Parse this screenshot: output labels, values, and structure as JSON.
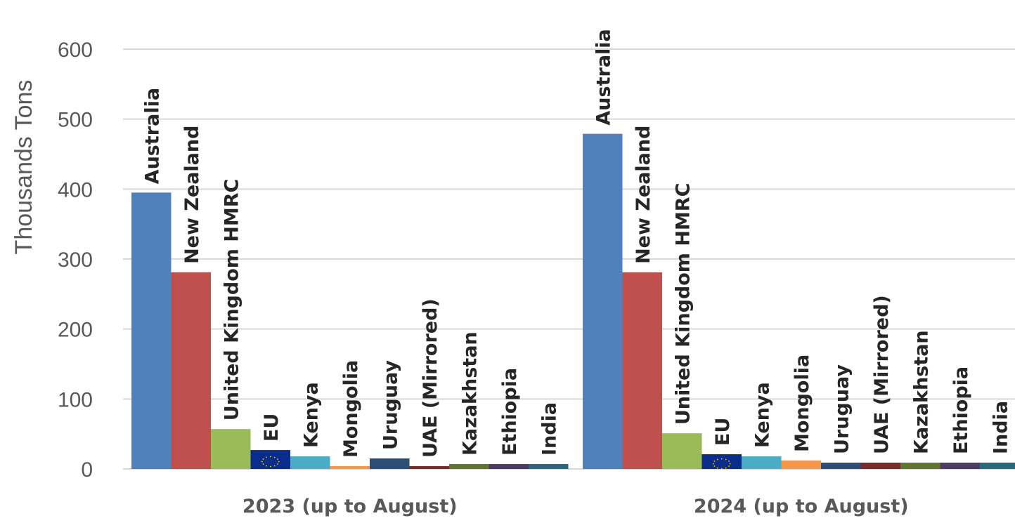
{
  "chart_data": {
    "type": "bar",
    "ylabel": "Thousands Tons",
    "ylim": [
      0,
      600
    ],
    "yticks": [
      "0",
      "100",
      "200",
      "300",
      "400",
      "500",
      "600"
    ],
    "grid": true,
    "categories": [
      "2023 (up to August)",
      "2024 (up to August)"
    ],
    "series": [
      {
        "name": "Australia",
        "color": "#4f81bd",
        "values": [
          395,
          479
        ]
      },
      {
        "name": "New Zealand",
        "color": "#c0504d",
        "values": [
          281,
          281
        ]
      },
      {
        "name": "United Kingdom HMRC",
        "color": "#9bbb59",
        "values": [
          57,
          51
        ]
      },
      {
        "name": "EU",
        "color": "#0a2d8c",
        "icon": "eu-flag-icon",
        "values": [
          27,
          21
        ]
      },
      {
        "name": "Kenya",
        "color": "#4bacc6",
        "values": [
          18,
          18
        ]
      },
      {
        "name": "Mongolia",
        "color": "#f79646",
        "values": [
          4,
          12
        ]
      },
      {
        "name": "Uruguay",
        "color": "#2c4d75",
        "values": [
          15,
          9
        ]
      },
      {
        "name": "UAE (Mirrored)",
        "color": "#772c2a",
        "values": [
          4,
          9
        ]
      },
      {
        "name": "Kazakhstan",
        "color": "#5f7530",
        "values": [
          7,
          9
        ]
      },
      {
        "name": "Ethiopia",
        "color": "#4d3b62",
        "values": [
          7,
          9
        ]
      },
      {
        "name": "India",
        "color": "#276a7c",
        "values": [
          7,
          9
        ]
      }
    ]
  }
}
